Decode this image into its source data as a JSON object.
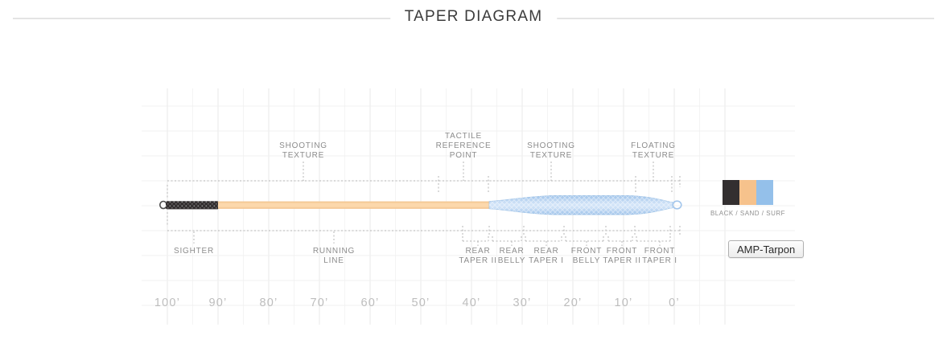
{
  "header": {
    "title": "TAPER DIAGRAM"
  },
  "diagram": {
    "top_labels": [
      [
        "SHOOTING",
        "TEXTURE"
      ],
      [
        "TACTILE",
        "REFERENCE",
        "POINT"
      ],
      [
        "SHOOTING",
        "TEXTURE"
      ],
      [
        "FLOATING",
        "TEXTURE"
      ]
    ],
    "bottom_labels": [
      [
        "SIGHTER"
      ],
      [
        "RUNNING",
        "LINE"
      ],
      [
        "REAR",
        "TAPER II"
      ],
      [
        "REAR",
        "BELLY"
      ],
      [
        "REAR",
        "TAPER I"
      ],
      [
        "FRONT",
        "BELLY"
      ],
      [
        "FRONT",
        "TAPER II"
      ],
      [
        "FRONT",
        "TAPER I"
      ]
    ],
    "axis_ticks": [
      "100’",
      "90’",
      "80’",
      "70’",
      "60’",
      "50’",
      "40’",
      "30’",
      "20’",
      "10’",
      "0’"
    ],
    "line_segments": [
      {
        "label": "SIGHTER",
        "from_ft": 100,
        "to_ft": 90,
        "color_name": "black"
      },
      {
        "label": "RUNNING LINE",
        "from_ft": 90,
        "to_ft": 37,
        "color_name": "sand"
      },
      {
        "label": "REAR TAPER II",
        "from_ft": 42,
        "to_ft": 37,
        "color_name": "sand"
      },
      {
        "label": "REAR BELLY",
        "from_ft": 37,
        "to_ft": 30,
        "color_name": "surf"
      },
      {
        "label": "REAR TAPER I",
        "from_ft": 30,
        "to_ft": 22,
        "color_name": "surf"
      },
      {
        "label": "FRONT BELLY",
        "from_ft": 22,
        "to_ft": 14,
        "color_name": "surf"
      },
      {
        "label": "FRONT TAPER II",
        "from_ft": 14,
        "to_ft": 8,
        "color_name": "surf"
      },
      {
        "label": "FRONT TAPER I",
        "from_ft": 8,
        "to_ft": 1,
        "color_name": "surf"
      }
    ],
    "colors": {
      "black": "#332f30",
      "sand": "#f8cc97",
      "surf": "#a9cbee"
    }
  },
  "legend": {
    "caption": "BLACK / SAND / SURF",
    "swatches": [
      {
        "name": "black",
        "hex": "#332f30"
      },
      {
        "name": "sand",
        "hex": "#f6c28c"
      },
      {
        "name": "surf",
        "hex": "#94c0ea"
      }
    ]
  },
  "product": {
    "button_label": "AMP-Tarpon"
  }
}
